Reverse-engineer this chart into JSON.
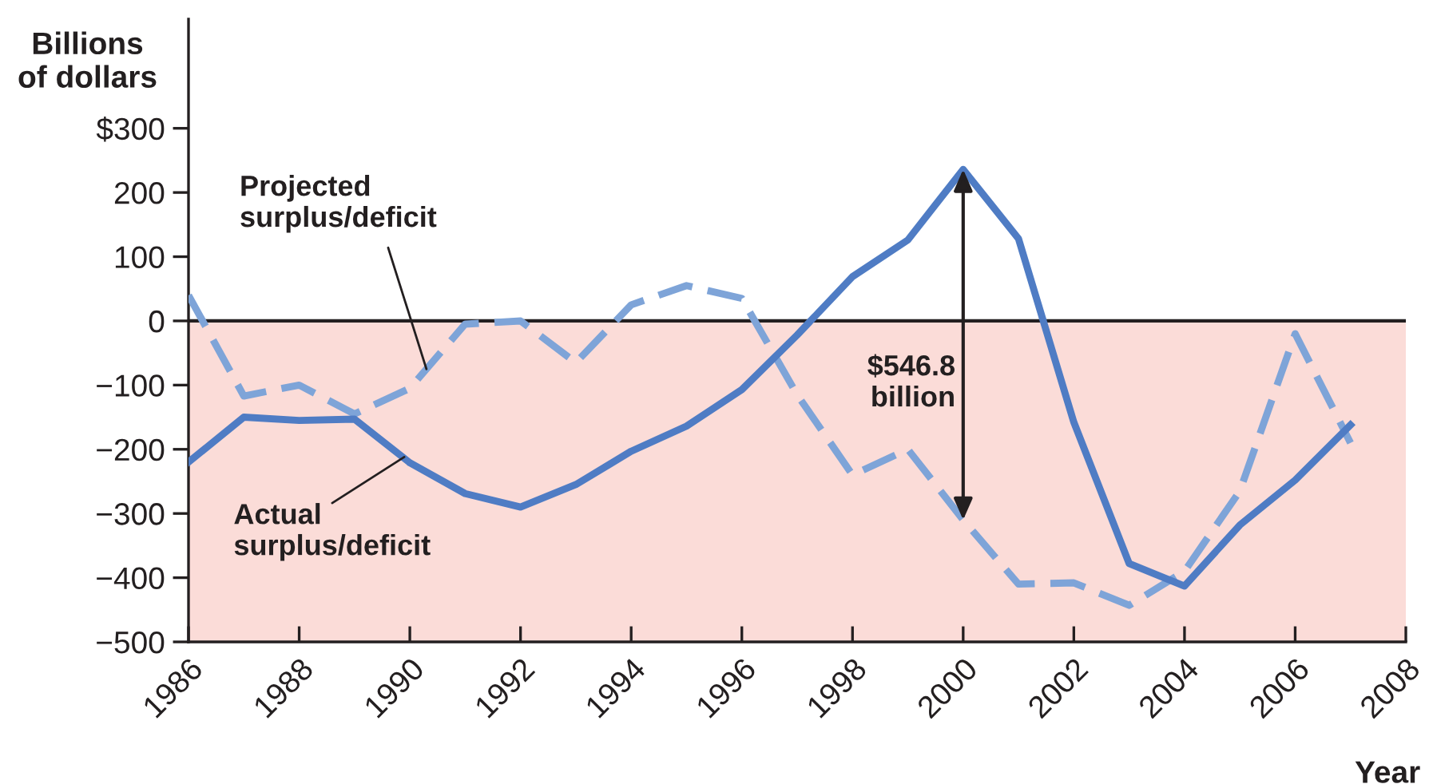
{
  "chart_data": {
    "type": "line",
    "xlabel": "Year",
    "ylabel": "Billions\nof dollars",
    "x": [
      1986,
      1987,
      1988,
      1989,
      1990,
      1991,
      1992,
      1993,
      1994,
      1995,
      1996,
      1997,
      1998,
      1999,
      2000,
      2001,
      2002,
      2003,
      2004,
      2005,
      2006,
      2007
    ],
    "series": [
      {
        "color": "#4f7cc4",
        "line_style": "solid",
        "values": [
          -220,
          -150,
          -155,
          -153,
          -221,
          -269,
          -290,
          -255,
          -203,
          -164,
          -107,
          -22,
          69,
          126,
          236,
          128,
          -158,
          -378,
          -413,
          -318,
          -248,
          -162
        ]
      },
      {
        "color": "#7ea4d8",
        "line_style": "dashed",
        "values": [
          40,
          -117,
          -100,
          -145,
          -105,
          -5,
          0,
          -65,
          25,
          55,
          35,
          -115,
          -240,
          -200,
          -310,
          -410,
          -408,
          -443,
          -390,
          -265,
          -20,
          -190
        ]
      }
    ],
    "xlim": [
      1986,
      2008
    ],
    "xticks": [
      1986,
      1988,
      1990,
      1992,
      1994,
      1996,
      1998,
      2000,
      2002,
      2004,
      2006,
      2008
    ],
    "ylim": [
      -500,
      470
    ],
    "yticks": [
      {
        "value": 300,
        "label": "$300"
      },
      200,
      100,
      0,
      {
        "value": -100,
        "label": "−100"
      },
      {
        "value": -200,
        "label": "−200"
      },
      {
        "value": -300,
        "label": "−300"
      },
      {
        "value": -400,
        "label": "−400"
      },
      {
        "value": -500,
        "label": "−500"
      }
    ],
    "bands": [
      {
        "axis": "y",
        "from": -500,
        "to": 0,
        "color": "#fbdcd8"
      }
    ],
    "ref_lines": [
      {
        "axis": "y",
        "value": 0,
        "color": "#231f20"
      }
    ],
    "annotations": [
      {
        "text": "Projected\nsurplus/deficit",
        "x": 1990.3,
        "y": -75
      },
      {
        "text": "Actual\nsurplus/deficit",
        "x": 1989.9,
        "y": -212
      },
      "$546.8\nbillion"
    ],
    "grid": false,
    "legend": false
  }
}
